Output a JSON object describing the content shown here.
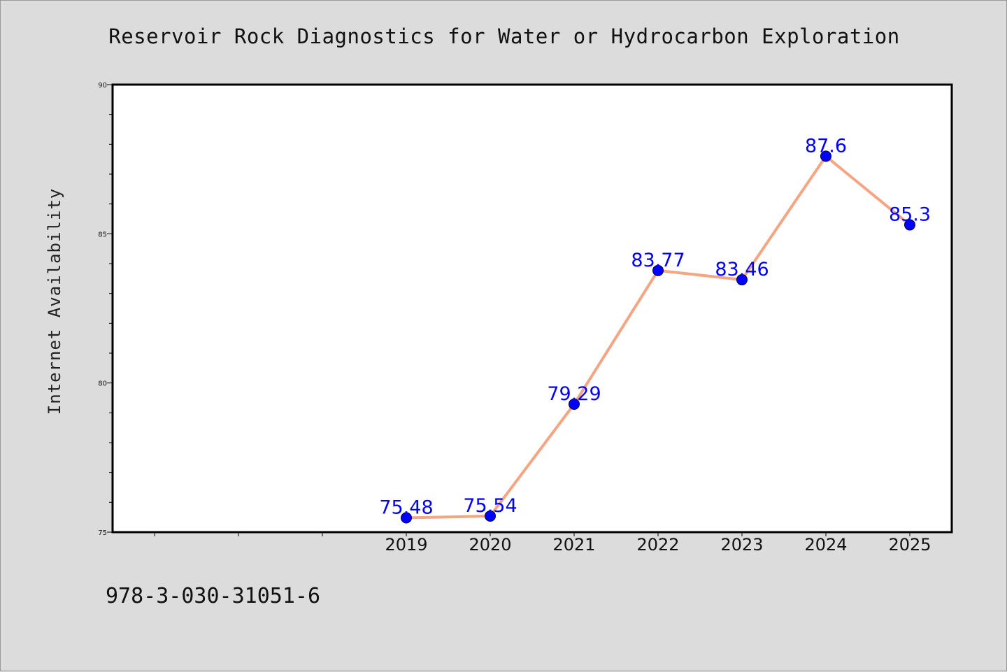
{
  "chart_data": {
    "type": "line",
    "title": "Reservoir Rock Diagnostics for Water or Hydrocarbon Exploration",
    "xlabel": "",
    "ylabel": "Internet Availability",
    "categories": [
      "2019",
      "2020",
      "2021",
      "2022",
      "2023",
      "2024",
      "2025"
    ],
    "x_axis_slots": 10,
    "series": [
      {
        "values": [
          75.48,
          75.54,
          79.29,
          83.77,
          83.46,
          87.6,
          85.3
        ],
        "labels": [
          "75.48",
          "75.54",
          "79.29",
          "83.77",
          "83.46",
          "87.6",
          "85.3"
        ]
      }
    ],
    "ylim": [
      75,
      90
    ],
    "yticks": [
      75,
      80,
      85,
      90
    ],
    "ytick_labels": [
      "75",
      "80",
      "85",
      "90"
    ],
    "y_minor_step": 1,
    "grid": false,
    "legend": "none",
    "colors": {
      "line": "#f4a582",
      "marker": "#0000ff",
      "label": "#0000ff",
      "background": "#dcdcdc",
      "plot_area": "#ffffff"
    }
  },
  "footer": {
    "id_text": "978-3-030-31051-6"
  }
}
